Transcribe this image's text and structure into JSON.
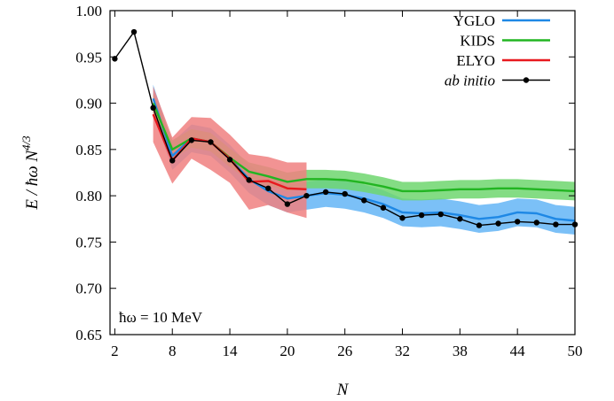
{
  "chart_data": {
    "type": "line",
    "xlabel": "N",
    "ylabel_parts": {
      "main": "E / ħω N",
      "exponent": "4/3"
    },
    "annotation": "ħω = 10 MeV",
    "xlim": [
      1.5,
      50
    ],
    "ylim": [
      0.65,
      1.0
    ],
    "xticks": [
      2,
      8,
      14,
      20,
      26,
      32,
      38,
      44,
      50
    ],
    "yticks": [
      0.65,
      0.7,
      0.75,
      0.8,
      0.85,
      0.9,
      0.95,
      1.0
    ],
    "grid": false,
    "legend_position": "top-right",
    "series": [
      {
        "name": "YGLO",
        "color": "#1e88e5",
        "band_color": "#64b5f6",
        "x": [
          6,
          8,
          10,
          12,
          14,
          16,
          18,
          20,
          22,
          24,
          26,
          28,
          30,
          32,
          34,
          36,
          38,
          40,
          42,
          44,
          46,
          48,
          50
        ],
        "y": [
          0.905,
          0.843,
          0.862,
          0.858,
          0.84,
          0.818,
          0.805,
          0.797,
          0.8,
          0.803,
          0.801,
          0.797,
          0.791,
          0.782,
          0.781,
          0.782,
          0.779,
          0.775,
          0.777,
          0.782,
          0.781,
          0.775,
          0.773
        ],
        "lower": [
          0.89,
          0.828,
          0.847,
          0.843,
          0.825,
          0.803,
          0.79,
          0.782,
          0.785,
          0.788,
          0.786,
          0.782,
          0.776,
          0.767,
          0.766,
          0.767,
          0.764,
          0.76,
          0.762,
          0.767,
          0.766,
          0.76,
          0.758
        ],
        "upper": [
          0.92,
          0.858,
          0.877,
          0.873,
          0.855,
          0.833,
          0.82,
          0.812,
          0.815,
          0.818,
          0.816,
          0.812,
          0.806,
          0.797,
          0.796,
          0.797,
          0.794,
          0.79,
          0.792,
          0.797,
          0.796,
          0.79,
          0.788
        ]
      },
      {
        "name": "KIDS",
        "color": "#22b522",
        "band_color": "#6fd66f",
        "x": [
          6,
          8,
          10,
          12,
          14,
          16,
          18,
          20,
          22,
          24,
          26,
          28,
          30,
          32,
          34,
          36,
          38,
          40,
          42,
          44,
          46,
          48,
          50
        ],
        "y": [
          0.9,
          0.85,
          0.862,
          0.858,
          0.841,
          0.826,
          0.821,
          0.815,
          0.818,
          0.818,
          0.817,
          0.814,
          0.81,
          0.805,
          0.805,
          0.806,
          0.807,
          0.807,
          0.808,
          0.808,
          0.807,
          0.806,
          0.805
        ],
        "lower": [
          0.89,
          0.84,
          0.852,
          0.848,
          0.831,
          0.816,
          0.811,
          0.805,
          0.808,
          0.808,
          0.807,
          0.804,
          0.8,
          0.795,
          0.795,
          0.796,
          0.797,
          0.797,
          0.798,
          0.798,
          0.797,
          0.796,
          0.795
        ],
        "upper": [
          0.91,
          0.86,
          0.872,
          0.868,
          0.851,
          0.836,
          0.831,
          0.825,
          0.828,
          0.828,
          0.827,
          0.824,
          0.82,
          0.815,
          0.815,
          0.816,
          0.817,
          0.817,
          0.818,
          0.818,
          0.817,
          0.816,
          0.815
        ]
      },
      {
        "name": "ELYO",
        "color": "#e8191f",
        "band_color": "#f08080",
        "x": [
          6,
          8,
          10,
          12,
          14,
          16,
          18,
          20,
          22
        ],
        "y": [
          0.888,
          0.838,
          0.862,
          0.858,
          0.84,
          0.815,
          0.816,
          0.808,
          0.807
        ],
        "lower": [
          0.858,
          0.813,
          0.84,
          0.828,
          0.814,
          0.785,
          0.79,
          0.782,
          0.776
        ],
        "upper": [
          0.918,
          0.863,
          0.885,
          0.884,
          0.866,
          0.845,
          0.842,
          0.836,
          0.836
        ]
      },
      {
        "name": "ab initio",
        "color": "#000000",
        "x": [
          2,
          4,
          6,
          8,
          10,
          12,
          14,
          16,
          18,
          20,
          22,
          24,
          26,
          28,
          30,
          32,
          34,
          36,
          38,
          40,
          42,
          44,
          46,
          48,
          50
        ],
        "y": [
          0.948,
          0.977,
          0.895,
          0.838,
          0.86,
          0.858,
          0.839,
          0.817,
          0.808,
          0.791,
          0.8,
          0.804,
          0.802,
          0.795,
          0.787,
          0.776,
          0.779,
          0.78,
          0.775,
          0.768,
          0.77,
          0.772,
          0.771,
          0.769,
          0.769
        ]
      }
    ]
  }
}
